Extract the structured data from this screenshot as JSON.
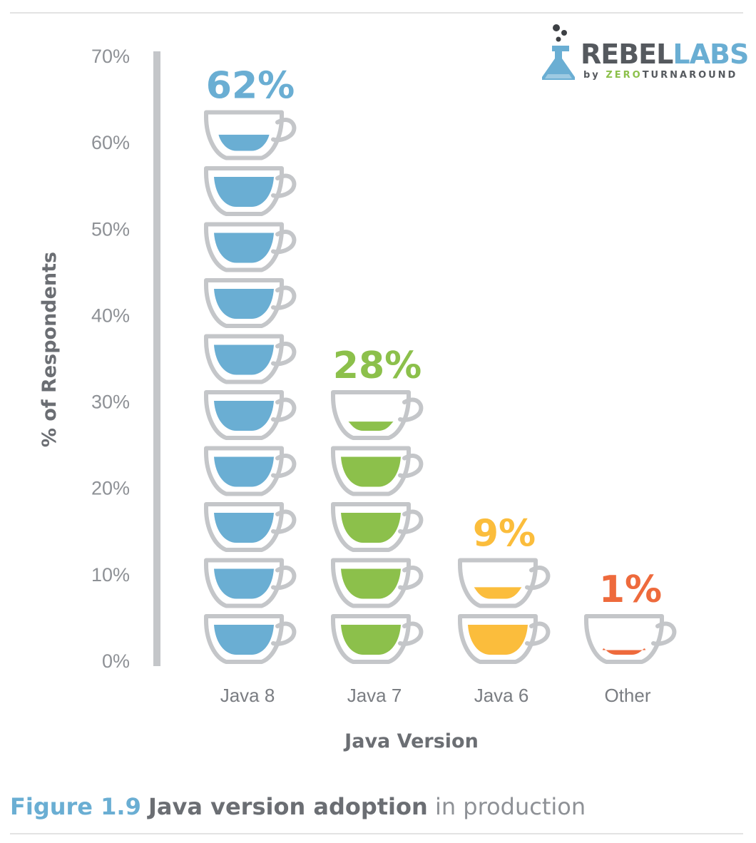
{
  "logo": {
    "name_part1": "REBEL",
    "name_part2": "LABS",
    "by_prefix": "by",
    "company_part1": "ZERO",
    "company_part2": "TURNAROUND",
    "colors": {
      "dark": "#55595e",
      "blue": "#6aaed3",
      "green": "#8cc04b"
    }
  },
  "caption": {
    "figure_number": "Figure 1.9",
    "title_bold": "Java version adoption",
    "title_rest": " in production"
  },
  "chart_data": {
    "type": "bar",
    "style": "pictogram-cups",
    "title": "",
    "xlabel": "Java Version",
    "ylabel": "% of Respondents",
    "ylim": [
      0,
      70
    ],
    "yticks": [
      "0%",
      "10%",
      "20%",
      "30%",
      "40%",
      "50%",
      "60%",
      "70%"
    ],
    "grid": false,
    "categories": [
      "Java 8",
      "Java 7",
      "Java 6",
      "Other"
    ],
    "values": [
      62,
      28,
      9,
      1
    ],
    "data_labels": [
      "62%",
      "28%",
      "9%",
      "1%"
    ],
    "colors": [
      "#6aaed3",
      "#8cc04b",
      "#fbbd3c",
      "#ee6a3c"
    ]
  }
}
